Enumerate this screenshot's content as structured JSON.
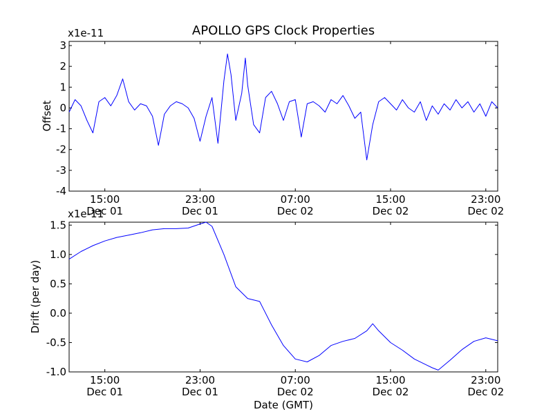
{
  "chart_data": [
    {
      "type": "line",
      "title": "APOLLO GPS Clock Properties",
      "ylabel": "Offset",
      "xlabel": "",
      "scale_label": "x1e-11",
      "line_color": "#0000ff",
      "x_unit": "hours since 2012-12-01 12:00 GMT",
      "xlim": [
        0,
        36
      ],
      "ylim": [
        -4,
        3.2
      ],
      "yticks": [
        {
          "value": 3,
          "label": "3"
        },
        {
          "value": 2,
          "label": "2"
        },
        {
          "value": 1,
          "label": "1"
        },
        {
          "value": 0,
          "label": "0"
        },
        {
          "value": -1,
          "label": "-1"
        },
        {
          "value": -2,
          "label": "-2"
        },
        {
          "value": -3,
          "label": "-3"
        },
        {
          "value": -4,
          "label": "-4"
        }
      ],
      "xticks": [
        {
          "value": 3,
          "time": "15:00",
          "date": "Dec 01"
        },
        {
          "value": 11,
          "time": "23:00",
          "date": "Dec 01"
        },
        {
          "value": 19,
          "time": "07:00",
          "date": "Dec 02"
        },
        {
          "value": 27,
          "time": "15:00",
          "date": "Dec 02"
        },
        {
          "value": 35,
          "time": "23:00",
          "date": "Dec 02"
        }
      ],
      "series": [
        {
          "name": "Offset",
          "x": [
            0,
            0.5,
            1.0,
            1.5,
            2.0,
            2.5,
            3.0,
            3.5,
            4.0,
            4.5,
            5.0,
            5.5,
            6.0,
            6.5,
            7.0,
            7.5,
            8.0,
            8.5,
            9.0,
            9.5,
            10.0,
            10.5,
            11.0,
            11.5,
            12.0,
            12.5,
            13.0,
            13.3,
            13.6,
            14.0,
            14.5,
            14.8,
            15.0,
            15.5,
            16.0,
            16.5,
            17.0,
            17.5,
            18.0,
            18.5,
            19.0,
            19.5,
            20.0,
            20.5,
            21.0,
            21.5,
            22.0,
            22.5,
            23.0,
            23.5,
            24.0,
            24.5,
            25.0,
            25.5,
            26.0,
            26.5,
            27.0,
            27.5,
            28.0,
            28.5,
            29.0,
            29.5,
            30.0,
            30.5,
            31.0,
            31.5,
            32.0,
            32.5,
            33.0,
            33.5,
            34.0,
            34.5,
            35.0,
            35.5,
            36.0
          ],
          "values": [
            -0.2,
            0.4,
            0.1,
            -0.6,
            -1.2,
            0.3,
            0.5,
            0.1,
            0.6,
            1.4,
            0.3,
            -0.1,
            0.2,
            0.1,
            -0.4,
            -1.8,
            -0.3,
            0.1,
            0.3,
            0.2,
            0.0,
            -0.5,
            -1.6,
            -0.4,
            0.5,
            -1.7,
            1.3,
            2.6,
            1.6,
            -0.6,
            0.7,
            2.4,
            1.1,
            -0.8,
            -1.2,
            0.5,
            0.8,
            0.2,
            -0.6,
            0.3,
            0.4,
            -1.4,
            0.2,
            0.3,
            0.1,
            -0.2,
            0.4,
            0.2,
            0.6,
            0.1,
            -0.5,
            -0.2,
            -2.5,
            -0.8,
            0.3,
            0.5,
            0.2,
            -0.1,
            0.4,
            0.0,
            -0.2,
            0.3,
            -0.6,
            0.1,
            -0.3,
            0.2,
            -0.1,
            0.4,
            0.0,
            0.3,
            -0.2,
            0.2,
            -0.4,
            0.3,
            0.0
          ]
        }
      ]
    },
    {
      "type": "line",
      "title": "",
      "ylabel": "Drift (per day)",
      "xlabel": "Date (GMT)",
      "scale_label": "x1e-11",
      "line_color": "#0000ff",
      "x_unit": "hours since 2012-12-01 12:00 GMT",
      "xlim": [
        0,
        36
      ],
      "ylim": [
        -1.0,
        1.55
      ],
      "yticks": [
        {
          "value": 1.5,
          "label": "1.5"
        },
        {
          "value": 1.0,
          "label": "1.0"
        },
        {
          "value": 0.5,
          "label": "0.5"
        },
        {
          "value": 0.0,
          "label": "0.0"
        },
        {
          "value": -0.5,
          "label": "-0.5"
        },
        {
          "value": -1.0,
          "label": "-1.0"
        }
      ],
      "xticks": [
        {
          "value": 3,
          "time": "15:00",
          "date": "Dec 01"
        },
        {
          "value": 11,
          "time": "23:00",
          "date": "Dec 01"
        },
        {
          "value": 19,
          "time": "07:00",
          "date": "Dec 02"
        },
        {
          "value": 27,
          "time": "15:00",
          "date": "Dec 02"
        },
        {
          "value": 35,
          "time": "23:00",
          "date": "Dec 02"
        }
      ],
      "series": [
        {
          "name": "Drift",
          "x": [
            0,
            1,
            2,
            3,
            4,
            5,
            6,
            7,
            8,
            9,
            10,
            11,
            11.5,
            12,
            13,
            14,
            15,
            16,
            17,
            18,
            19,
            20,
            21,
            22,
            23,
            24,
            25,
            25.5,
            26,
            27,
            28,
            29,
            30,
            30.5,
            31,
            32,
            33,
            34,
            35,
            36
          ],
          "values": [
            0.92,
            1.05,
            1.15,
            1.23,
            1.29,
            1.33,
            1.37,
            1.42,
            1.44,
            1.44,
            1.45,
            1.52,
            1.55,
            1.48,
            1.0,
            0.45,
            0.25,
            0.2,
            -0.2,
            -0.55,
            -0.78,
            -0.83,
            -0.72,
            -0.55,
            -0.48,
            -0.43,
            -0.3,
            -0.18,
            -0.3,
            -0.5,
            -0.63,
            -0.78,
            -0.88,
            -0.93,
            -0.97,
            -0.8,
            -0.62,
            -0.48,
            -0.42,
            -0.47
          ]
        }
      ]
    }
  ]
}
